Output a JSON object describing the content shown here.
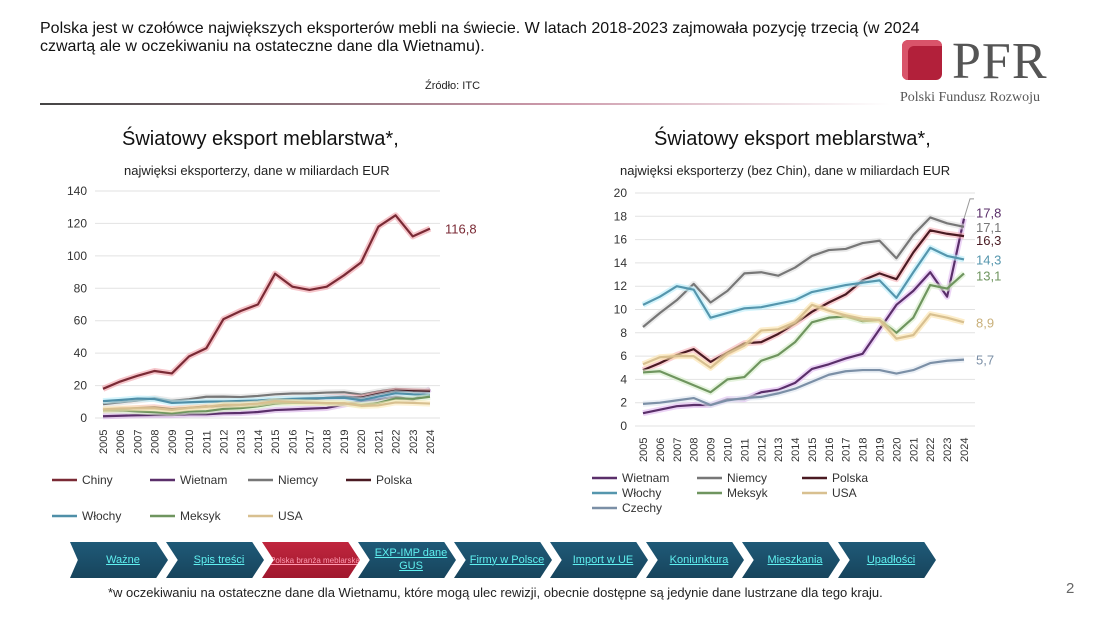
{
  "header": {
    "headline": "Polska jest w czołówce największych eksporterów mebli na świecie. W latach 2018-2023 zajmowała pozycję trzecią (w 2024 czwartą ale w oczekiwaniu na ostateczne dane dla Wietnamu).",
    "source": "Źródło: ITC"
  },
  "logo": {
    "name": "PFR",
    "subtitle": "Polski Fundusz Rozwoju"
  },
  "chart_data": [
    {
      "type": "line",
      "title": "Światowy eksport meblarstwa*,",
      "subtitle": "najwięksi eksporterzy, dane w miliardach EUR",
      "ylim": [
        0,
        140
      ],
      "yticks": [
        "0",
        "20",
        "40",
        "60",
        "80",
        "100",
        "120",
        "140"
      ],
      "x": [
        "2005",
        "2006",
        "2007",
        "2008",
        "2009",
        "2010",
        "2011",
        "2012",
        "2013",
        "2014",
        "2015",
        "2016",
        "2017",
        "2018",
        "2019",
        "2020",
        "2021",
        "2022",
        "2023",
        "2024"
      ],
      "end_labels": [
        {
          "series": "Chiny",
          "text": "116,8"
        }
      ],
      "series": [
        {
          "name": "Chiny",
          "color": "#7a2a35",
          "glow": "#f0a0a8",
          "values": [
            18,
            22.5,
            26,
            29,
            27.5,
            38,
            43,
            61,
            66,
            70,
            89,
            81,
            79,
            81,
            88,
            96,
            118,
            125,
            112,
            116.8
          ]
        },
        {
          "name": "Wietnam",
          "color": "#5a2f6a",
          "glow": "#d9b0e8",
          "values": [
            1.1,
            1.4,
            1.7,
            1.8,
            1.8,
            2.3,
            2.3,
            2.9,
            3.1,
            3.7,
            4.9,
            5.3,
            5.8,
            6.2,
            8.3,
            10.4,
            11.6,
            13.2,
            11.1,
            17.8
          ]
        },
        {
          "name": "Niemcy",
          "color": "#777777",
          "glow": "#dddddd",
          "values": [
            8.5,
            9.7,
            10.8,
            12.2,
            10.6,
            11.6,
            13.1,
            13.2,
            12.9,
            13.6,
            14.6,
            15.1,
            15.2,
            15.7,
            15.9,
            14.4,
            16.4,
            17.9,
            17.4,
            17.1
          ]
        },
        {
          "name": "Polska",
          "color": "#4a1a22",
          "glow": "#f4b0b8",
          "values": [
            4.8,
            5.4,
            6.1,
            6.6,
            5.5,
            6.3,
            7.1,
            7.2,
            7.9,
            8.8,
            9.8,
            10.6,
            11.3,
            12.5,
            13.1,
            12.6,
            14.9,
            16.8,
            16.5,
            16.3
          ]
        },
        {
          "name": "Włochy",
          "color": "#4f8fa8",
          "glow": "#b8ecfa",
          "values": [
            10.4,
            11.1,
            12.0,
            11.7,
            9.3,
            9.7,
            10.1,
            10.2,
            10.5,
            10.8,
            11.5,
            11.8,
            12.1,
            12.3,
            12.5,
            11.0,
            13.2,
            15.3,
            14.6,
            14.3
          ]
        },
        {
          "name": "Meksyk",
          "color": "#6f955f",
          "glow": "#d5ecc8",
          "values": [
            4.6,
            4.7,
            4.1,
            3.5,
            2.9,
            4.0,
            4.2,
            5.6,
            6.1,
            7.2,
            8.9,
            9.3,
            9.4,
            9.0,
            9.1,
            8.0,
            9.3,
            12.1,
            11.8,
            13.1
          ]
        },
        {
          "name": "USA",
          "color": "#d8c090",
          "glow": "#fbe9b8",
          "values": [
            5.3,
            5.9,
            6.0,
            6.0,
            5.0,
            6.2,
            6.9,
            8.2,
            8.3,
            8.9,
            10.4,
            9.9,
            9.5,
            9.2,
            9.1,
            7.5,
            7.8,
            9.6,
            9.3,
            8.9
          ]
        }
      ]
    },
    {
      "type": "line",
      "title": "Światowy eksport meblarstwa*,",
      "subtitle": "najwięksi eksporterzy (bez Chin), dane w miliardach EUR",
      "ylim": [
        0,
        20
      ],
      "yticks": [
        "0",
        "2",
        "4",
        "6",
        "8",
        "10",
        "12",
        "14",
        "16",
        "18",
        "20"
      ],
      "x": [
        "2005",
        "2006",
        "2007",
        "2008",
        "2009",
        "2010",
        "2011",
        "2012",
        "2013",
        "2014",
        "2015",
        "2016",
        "2017",
        "2018",
        "2019",
        "2020",
        "2021",
        "2022",
        "2023",
        "2024"
      ],
      "end_labels": [
        {
          "series": "Wietnam",
          "text": "17,8"
        },
        {
          "series": "Niemcy",
          "text": "17,1"
        },
        {
          "series": "Polska",
          "text": "16,3"
        },
        {
          "series": "Włochy",
          "text": "14,3"
        },
        {
          "series": "Meksyk",
          "text": "13,1"
        },
        {
          "series": "USA",
          "text": "8,9"
        },
        {
          "series": "Czechy",
          "text": "5,7"
        }
      ],
      "series": [
        {
          "name": "Wietnam",
          "color": "#5a2f6a",
          "glow": "#e0b8f0",
          "values": [
            1.1,
            1.4,
            1.7,
            1.8,
            1.8,
            2.3,
            2.3,
            2.9,
            3.1,
            3.7,
            4.9,
            5.3,
            5.8,
            6.2,
            8.3,
            10.4,
            11.6,
            13.2,
            11.1,
            17.8
          ]
        },
        {
          "name": "Niemcy",
          "color": "#777777",
          "glow": "#dddddd",
          "values": [
            8.5,
            9.7,
            10.8,
            12.2,
            10.6,
            11.6,
            13.1,
            13.2,
            12.9,
            13.6,
            14.6,
            15.1,
            15.2,
            15.7,
            15.9,
            14.4,
            16.4,
            17.9,
            17.4,
            17.1
          ]
        },
        {
          "name": "Polska",
          "color": "#4a1a22",
          "glow": "#f6b0b8",
          "values": [
            4.8,
            5.4,
            6.1,
            6.6,
            5.5,
            6.3,
            7.1,
            7.2,
            7.9,
            8.8,
            9.8,
            10.6,
            11.3,
            12.5,
            13.1,
            12.6,
            14.9,
            16.8,
            16.5,
            16.3
          ]
        },
        {
          "name": "Włochy",
          "color": "#5596ad",
          "glow": "#b8ecfa",
          "values": [
            10.4,
            11.1,
            12.0,
            11.7,
            9.3,
            9.7,
            10.1,
            10.2,
            10.5,
            10.8,
            11.5,
            11.8,
            12.1,
            12.3,
            12.5,
            11.0,
            13.2,
            15.3,
            14.6,
            14.3
          ]
        },
        {
          "name": "Meksyk",
          "color": "#6f955f",
          "glow": "#d5ecc8",
          "values": [
            4.6,
            4.7,
            4.1,
            3.5,
            2.9,
            4.0,
            4.2,
            5.6,
            6.1,
            7.2,
            8.9,
            9.3,
            9.4,
            9.0,
            9.1,
            8.0,
            9.3,
            12.1,
            11.8,
            13.1
          ]
        },
        {
          "name": "USA",
          "color": "#d8c090",
          "glow": "#fbe3a8",
          "values": [
            5.3,
            5.9,
            6.0,
            6.0,
            5.0,
            6.2,
            6.9,
            8.2,
            8.3,
            8.9,
            10.4,
            9.9,
            9.5,
            9.2,
            9.1,
            7.5,
            7.8,
            9.6,
            9.3,
            8.9
          ]
        },
        {
          "name": "Czechy",
          "color": "#7b8fa6",
          "glow": "#dde6f0",
          "values": [
            1.9,
            2.0,
            2.2,
            2.4,
            1.8,
            2.2,
            2.4,
            2.5,
            2.8,
            3.2,
            3.8,
            4.4,
            4.7,
            4.8,
            4.8,
            4.5,
            4.8,
            5.4,
            5.6,
            5.7
          ]
        }
      ]
    }
  ],
  "nav": [
    {
      "label": "Ważne"
    },
    {
      "label": "Spis treści"
    },
    {
      "label": "Polska branża meblarska",
      "active": true
    },
    {
      "label": "EXP-IMP dane GUS"
    },
    {
      "label": "Firmy w Polsce"
    },
    {
      "label": "Import w UE"
    },
    {
      "label": "Koniunktura"
    },
    {
      "label": "Mieszkania"
    },
    {
      "label": "Upadłości"
    }
  ],
  "footnote": "*w oczekiwaniu na ostateczne dane dla Wietnamu, które mogą ulec rewizji, obecnie dostępne są jedynie dane lustrzane dla tego kraju.",
  "page_number": "2"
}
